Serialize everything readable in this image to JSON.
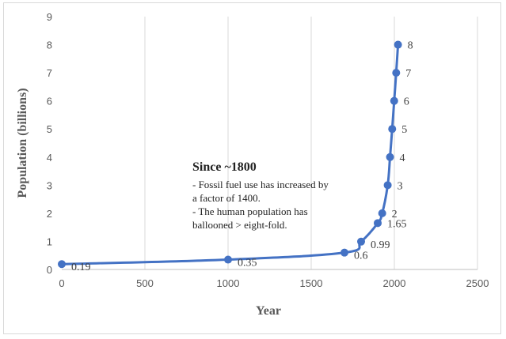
{
  "chart_data": {
    "type": "line",
    "xlabel": "Year",
    "ylabel": "Population (billions)",
    "xlim": [
      0,
      2500
    ],
    "ylim": [
      0,
      9
    ],
    "xticks": [
      "0",
      "500",
      "1000",
      "1500",
      "2000",
      "2500"
    ],
    "yticks": [
      "0",
      "1",
      "2",
      "3",
      "4",
      "5",
      "6",
      "7",
      "8",
      "9"
    ],
    "grid": "vertical",
    "series": [
      {
        "color": "#4472c4",
        "points": [
          {
            "x": 0,
            "y": 0.19,
            "label": "0.19"
          },
          {
            "x": 1000,
            "y": 0.35,
            "label": "0.35"
          },
          {
            "x": 1700,
            "y": 0.6,
            "label": "0.6"
          },
          {
            "x": 1800,
            "y": 0.99,
            "label": "0.99"
          },
          {
            "x": 1900,
            "y": 1.65,
            "label": "1.65"
          },
          {
            "x": 1927,
            "y": 2,
            "label": "2"
          },
          {
            "x": 1960,
            "y": 3,
            "label": "3"
          },
          {
            "x": 1974,
            "y": 4,
            "label": "4"
          },
          {
            "x": 1987,
            "y": 5,
            "label": "5"
          },
          {
            "x": 1999,
            "y": 6,
            "label": "6"
          },
          {
            "x": 2011,
            "y": 7,
            "label": "7"
          },
          {
            "x": 2022,
            "y": 8,
            "label": "8"
          }
        ]
      }
    ],
    "annotation": {
      "title": "Since ~1800",
      "lines": [
        "- Fossil fuel use has increased by",
        "a factor of 1400.",
        "- The human population has",
        "ballooned  > eight-fold."
      ]
    }
  }
}
